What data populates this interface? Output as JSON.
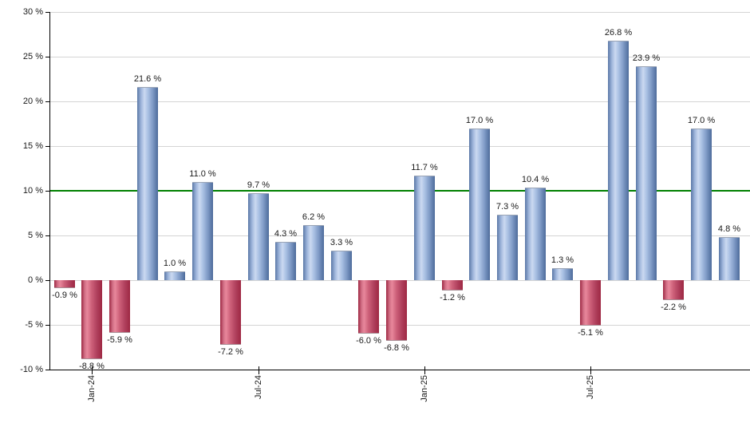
{
  "chart_data": {
    "type": "bar",
    "title": "",
    "xlabel": "",
    "ylabel": "",
    "ylim": [
      -10,
      30
    ],
    "grid": true,
    "legend": "none",
    "benchmark_line": {
      "value": 10,
      "color": "#008000"
    },
    "y_ticks": [
      {
        "value": 30,
        "label": "30 %"
      },
      {
        "value": 25,
        "label": "25 %"
      },
      {
        "value": 20,
        "label": "20 %"
      },
      {
        "value": 15,
        "label": "15 %"
      },
      {
        "value": 10,
        "label": "10 %"
      },
      {
        "value": 5,
        "label": "5 %"
      },
      {
        "value": 0,
        "label": "0 %"
      },
      {
        "value": -5,
        "label": "-5 %"
      },
      {
        "value": -10,
        "label": "-10 %"
      }
    ],
    "x_ticks": [
      {
        "label": "Jan-24",
        "bar_index": 1
      },
      {
        "label": "Jul-24",
        "bar_index": 7
      },
      {
        "label": "Jan-25",
        "bar_index": 13
      },
      {
        "label": "Jul-25",
        "bar_index": 19
      }
    ],
    "bars": [
      {
        "value": -0.9,
        "label": "-0.9 %"
      },
      {
        "value": -8.8,
        "label": "-8.8 %"
      },
      {
        "value": -5.9,
        "label": "-5.9 %"
      },
      {
        "value": 21.6,
        "label": "21.6 %"
      },
      {
        "value": 1.0,
        "label": "1.0 %"
      },
      {
        "value": 11.0,
        "label": "11.0 %"
      },
      {
        "value": -7.2,
        "label": "-7.2 %"
      },
      {
        "value": 9.7,
        "label": "9.7 %"
      },
      {
        "value": 4.3,
        "label": "4.3 %"
      },
      {
        "value": 6.2,
        "label": "6.2 %"
      },
      {
        "value": 3.3,
        "label": "3.3 %"
      },
      {
        "value": -6.0,
        "label": "-6.0 %"
      },
      {
        "value": -6.8,
        "label": "-6.8 %"
      },
      {
        "value": 11.7,
        "label": "11.7 %"
      },
      {
        "value": -1.2,
        "label": "-1.2 %"
      },
      {
        "value": 17.0,
        "label": "17.0 %"
      },
      {
        "value": 7.3,
        "label": "7.3 %"
      },
      {
        "value": 10.4,
        "label": "10.4 %"
      },
      {
        "value": 1.3,
        "label": "1.3 %"
      },
      {
        "value": -5.1,
        "label": "-5.1 %"
      },
      {
        "value": 26.8,
        "label": "26.8 %"
      },
      {
        "value": 23.9,
        "label": "23.9 %"
      },
      {
        "value": -2.2,
        "label": "-2.2 %"
      },
      {
        "value": 17.0,
        "label": "17.0 %"
      },
      {
        "value": 4.8,
        "label": "4.8 %"
      }
    ],
    "colors": {
      "positive_bar": "#7e99c5",
      "negative_bar": "#b0405d",
      "gridline": "#d4d4d4",
      "axis": "#000000",
      "benchmark": "#008000",
      "label_text": "#1a1a1a"
    }
  }
}
